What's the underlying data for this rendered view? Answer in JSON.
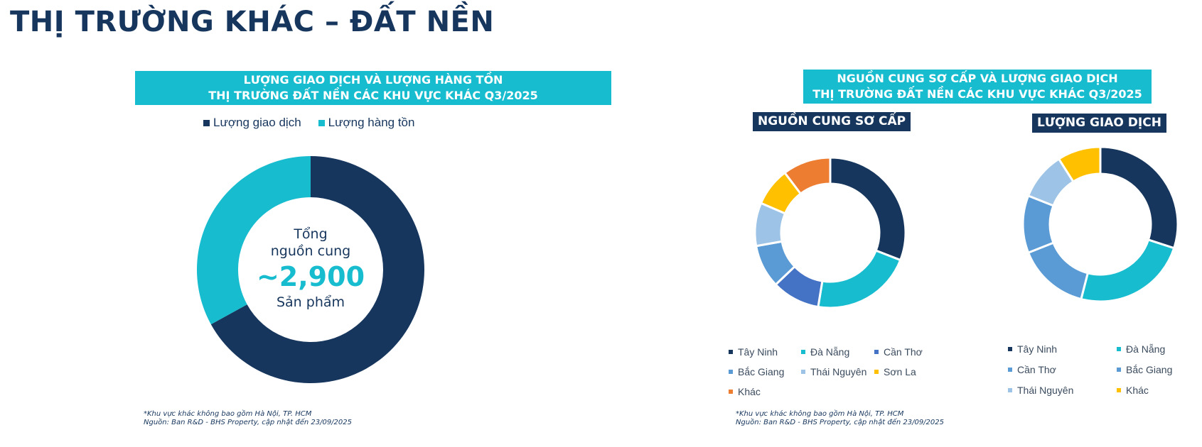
{
  "page": {
    "title": "THỊ TRƯỜNG KHÁC – ĐẤT NỀN"
  },
  "left_panel": {
    "banner_line1": "LƯỢNG GIAO DỊCH VÀ LƯỢNG HÀNG TỒN",
    "banner_line2": "THỊ TRƯỜNG ĐẤT NỀN CÁC KHU VỰC KHÁC Q3/2025",
    "center_line1": "Tổng",
    "center_line2": "nguồn cung",
    "center_value": "~2,900",
    "center_unit": "Sản phẩm",
    "footnote_line1": "*Khu vực khác không bao gồm Hà Nội, TP. HCM",
    "footnote_line2": "Nguồn: Ban R&D - BHS Property, cập nhật đến 23/09/2025"
  },
  "right_panel": {
    "banner_line1": "NGUỒN CUNG SƠ CẤP VÀ LƯỢNG GIAO DỊCH",
    "banner_line2": "THỊ TRƯỜNG ĐẤT NỀN CÁC KHU VỰC KHÁC Q3/2025",
    "supply_title": "NGUỒN CUNG SƠ CẤP",
    "transaction_title": "LƯỢNG GIAO DỊCH",
    "footnote_line1": "*Khu vực khác không bao gồm Hà Nội, TP. HCM",
    "footnote_line2": "Nguồn: Ban R&D - BHS Property, cập nhật đến 23/09/2025"
  },
  "chart_data": [
    {
      "type": "pie",
      "donut": true,
      "title": "",
      "legend": "top",
      "series": [
        {
          "name": "Lượng giao dịch",
          "value": 67,
          "color": "#17365d"
        },
        {
          "name": "Lượng hàng tồn",
          "value": 33,
          "color": "#17bccf"
        }
      ]
    },
    {
      "type": "pie",
      "donut": true,
      "title": "NGUỒN CUNG SƠ CẤP",
      "legend": "bottom",
      "series": [
        {
          "name": "Tây Ninh",
          "value": 30,
          "color": "#17365d"
        },
        {
          "name": "Đà Nẵng",
          "value": 21,
          "color": "#17bccf"
        },
        {
          "name": "Cần Thơ",
          "value": 10,
          "color": "#4472c4"
        },
        {
          "name": "Bắc Giang",
          "value": 9,
          "color": "#5b9bd5"
        },
        {
          "name": "Thái Nguyên",
          "value": 9,
          "color": "#9dc3e6"
        },
        {
          "name": "Sơn La",
          "value": 8,
          "color": "#ffc000"
        },
        {
          "name": "Khác",
          "value": 10,
          "color": "#ed7d31"
        }
      ]
    },
    {
      "type": "pie",
      "donut": true,
      "title": "LƯỢNG GIAO DỊCH",
      "legend": "bottom",
      "series": [
        {
          "name": "Tây Ninh",
          "value": 30,
          "color": "#17365d"
        },
        {
          "name": "Đà Nẵng",
          "value": 24,
          "color": "#17bccf"
        },
        {
          "name": "Cần Thơ",
          "value": 15,
          "color": "#5b9bd5"
        },
        {
          "name": "Bắc Giang",
          "value": 12,
          "color": "#5b9bd5"
        },
        {
          "name": "Thái Nguyên",
          "value": 10,
          "color": "#9dc3e6"
        },
        {
          "name": "Khác",
          "value": 9,
          "color": "#ffc000"
        }
      ]
    }
  ]
}
